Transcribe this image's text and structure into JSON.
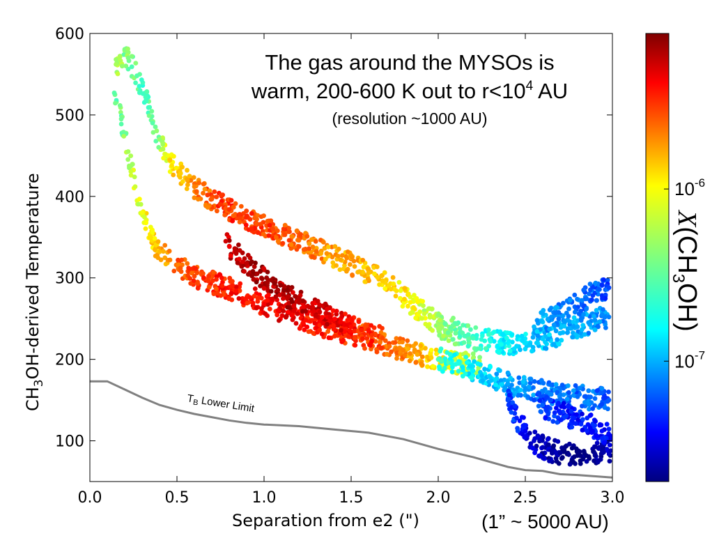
{
  "chart_data": {
    "type": "scatter",
    "title_lines": [
      "The gas around the MYSOs is",
      "warm, 200-600 K out to r<10",
      "4",
      " AU",
      "(resolution ~1000 AU)"
    ],
    "xlabel": "Separation from e2 (\")",
    "xlabel_note": "(1” ~ 5000 AU)",
    "ylabel_parts": [
      "CH",
      "3",
      "OH-derived Temperature"
    ],
    "xlim": [
      0.0,
      3.0
    ],
    "ylim": [
      50,
      600
    ],
    "x_ticks": [
      "0.0",
      "0.5",
      "1.0",
      "1.5",
      "2.0",
      "2.5",
      "3.0"
    ],
    "y_ticks": [
      "100",
      "200",
      "300",
      "400",
      "500",
      "600"
    ],
    "grid": false,
    "colorbar": {
      "label_parts": [
        "X",
        "(CH",
        "3",
        "OH)"
      ],
      "scale": "log",
      "range": [
        2e-08,
        8e-06
      ],
      "ticks": [
        {
          "base": "10",
          "exp": "-6",
          "value": 1e-06
        },
        {
          "base": "10",
          "exp": "-7",
          "value": 1e-07
        }
      ],
      "colormap": "jet"
    },
    "lower_limit_curve": {
      "label_main": "T",
      "label_sub": "B",
      "label_rest": " Lower Limit",
      "color": "#808080",
      "points": [
        [
          0.0,
          173
        ],
        [
          0.1,
          173
        ],
        [
          0.2,
          163
        ],
        [
          0.3,
          153
        ],
        [
          0.4,
          144
        ],
        [
          0.5,
          138
        ],
        [
          0.6,
          133
        ],
        [
          0.7,
          129
        ],
        [
          0.8,
          125
        ],
        [
          0.9,
          122
        ],
        [
          1.0,
          120
        ],
        [
          1.2,
          118
        ],
        [
          1.4,
          114
        ],
        [
          1.6,
          110
        ],
        [
          1.8,
          102
        ],
        [
          2.0,
          90
        ],
        [
          2.2,
          80
        ],
        [
          2.4,
          68
        ],
        [
          2.5,
          64
        ],
        [
          2.6,
          63
        ],
        [
          2.7,
          59
        ],
        [
          2.8,
          58
        ],
        [
          3.0,
          55
        ]
      ]
    },
    "series": [
      {
        "points": [
          [
            0.15,
            562
          ],
          [
            0.22,
            570
          ],
          [
            0.27,
            548
          ],
          [
            0.32,
            522
          ],
          [
            0.36,
            490
          ],
          [
            0.4,
            470
          ],
          [
            0.43,
            452
          ],
          [
            0.47,
            438
          ],
          [
            0.52,
            428
          ],
          [
            0.56,
            420
          ],
          [
            0.6,
            412
          ],
          [
            0.65,
            404
          ],
          [
            0.7,
            397
          ],
          [
            0.75,
            390
          ],
          [
            0.8,
            384
          ],
          [
            0.86,
            378
          ],
          [
            0.92,
            372
          ],
          [
            0.98,
            366
          ],
          [
            1.05,
            360
          ],
          [
            1.12,
            353
          ],
          [
            1.2,
            346
          ],
          [
            1.28,
            338
          ],
          [
            1.36,
            330
          ],
          [
            1.44,
            322
          ],
          [
            1.52,
            314
          ],
          [
            1.6,
            306
          ],
          [
            1.68,
            296
          ],
          [
            1.76,
            284
          ],
          [
            1.84,
            270
          ],
          [
            1.92,
            256
          ],
          [
            2.0,
            244
          ],
          [
            2.1,
            236
          ]
        ],
        "logX": [
          -6.3,
          -6.4,
          -6.5,
          -6.55,
          -6.5,
          -6.35,
          -6.15,
          -6.0,
          -5.95,
          -5.85,
          -5.75,
          -5.7,
          -5.65,
          -5.55,
          -5.55,
          -5.55,
          -5.55,
          -5.6,
          -5.6,
          -5.6,
          -5.7,
          -5.75,
          -5.8,
          -5.85,
          -5.85,
          -5.9,
          -5.95,
          -6.0,
          -6.05,
          -6.2,
          -6.3,
          -6.35
        ]
      },
      {
        "points": [
          [
            0.14,
            527
          ],
          [
            0.18,
            495
          ],
          [
            0.22,
            455
          ],
          [
            0.26,
            412
          ],
          [
            0.3,
            380
          ],
          [
            0.35,
            350
          ],
          [
            0.4,
            332
          ],
          [
            0.46,
            322
          ],
          [
            0.52,
            312
          ],
          [
            0.6,
            302
          ],
          [
            0.68,
            296
          ],
          [
            0.76,
            290
          ],
          [
            0.84,
            284
          ],
          [
            0.92,
            276
          ],
          [
            1.0,
            268
          ],
          [
            1.08,
            260
          ],
          [
            1.16,
            254
          ],
          [
            1.24,
            248
          ],
          [
            1.32,
            242
          ],
          [
            1.4,
            237
          ],
          [
            1.48,
            232
          ],
          [
            1.56,
            228
          ],
          [
            1.64,
            222
          ],
          [
            1.72,
            216
          ],
          [
            1.8,
            211
          ],
          [
            1.88,
            206
          ],
          [
            1.96,
            202
          ],
          [
            2.04,
            199
          ],
          [
            2.14,
            196
          ],
          [
            2.24,
            192
          ]
        ],
        "logX": [
          -6.5,
          -6.45,
          -6.3,
          -6.2,
          -6.1,
          -6.0,
          -5.9,
          -5.75,
          -5.65,
          -5.6,
          -5.55,
          -5.5,
          -5.45,
          -5.45,
          -5.4,
          -5.4,
          -5.4,
          -5.45,
          -5.5,
          -5.55,
          -5.55,
          -5.6,
          -5.65,
          -5.7,
          -5.75,
          -5.85,
          -5.95,
          -6.05,
          -6.2,
          -6.35
        ]
      },
      {
        "points": [
          [
            0.78,
            345
          ],
          [
            0.84,
            330
          ],
          [
            0.9,
            318
          ],
          [
            0.96,
            305
          ],
          [
            1.02,
            294
          ],
          [
            1.08,
            285
          ],
          [
            1.14,
            277
          ],
          [
            1.2,
            270
          ],
          [
            1.26,
            264
          ],
          [
            1.32,
            258
          ],
          [
            1.38,
            252
          ],
          [
            1.44,
            246
          ],
          [
            1.5,
            240
          ],
          [
            1.56,
            236
          ],
          [
            1.62,
            230
          ],
          [
            1.68,
            226
          ]
        ],
        "logX": [
          -5.3,
          -5.25,
          -5.25,
          -5.2,
          -5.2,
          -5.2,
          -5.25,
          -5.25,
          -5.3,
          -5.3,
          -5.35,
          -5.4,
          -5.45,
          -5.5,
          -5.55,
          -5.6
        ]
      },
      {
        "points": [
          [
            2.0,
            238
          ],
          [
            2.1,
            232
          ],
          [
            2.2,
            226
          ],
          [
            2.3,
            222
          ],
          [
            2.4,
            220
          ],
          [
            2.5,
            220
          ],
          [
            2.6,
            225
          ],
          [
            2.7,
            232
          ],
          [
            2.8,
            240
          ],
          [
            2.9,
            248
          ],
          [
            2.98,
            252
          ]
        ],
        "logX": [
          -6.3,
          -6.45,
          -6.55,
          -6.65,
          -6.75,
          -6.8,
          -6.85,
          -6.9,
          -6.95,
          -7.0,
          -7.05
        ]
      },
      {
        "points": [
          [
            2.0,
            200
          ],
          [
            2.1,
            194
          ],
          [
            2.2,
            186
          ],
          [
            2.3,
            178
          ],
          [
            2.4,
            170
          ],
          [
            2.5,
            164
          ],
          [
            2.6,
            160
          ],
          [
            2.7,
            156
          ],
          [
            2.8,
            154
          ],
          [
            2.9,
            152
          ],
          [
            2.98,
            150
          ]
        ],
        "logX": [
          -6.55,
          -6.65,
          -6.75,
          -6.85,
          -6.95,
          -7.0,
          -7.05,
          -7.05,
          -7.1,
          -7.1,
          -7.15
        ]
      },
      {
        "points": [
          [
            2.4,
            150
          ],
          [
            2.45,
            128
          ],
          [
            2.5,
            112
          ],
          [
            2.55,
            100
          ],
          [
            2.6,
            92
          ],
          [
            2.65,
            88
          ],
          [
            2.7,
            85
          ],
          [
            2.75,
            83
          ],
          [
            2.8,
            82
          ],
          [
            2.85,
            82
          ],
          [
            2.9,
            84
          ],
          [
            2.95,
            86
          ],
          [
            2.99,
            88
          ]
        ],
        "logX": [
          -7.2,
          -7.3,
          -7.4,
          -7.5,
          -7.55,
          -7.6,
          -7.65,
          -7.65,
          -7.7,
          -7.7,
          -7.65,
          -7.6,
          -7.55
        ]
      },
      {
        "points": [
          [
            2.55,
            150
          ],
          [
            2.62,
            140
          ],
          [
            2.7,
            134
          ],
          [
            2.78,
            128
          ],
          [
            2.86,
            120
          ],
          [
            2.94,
            112
          ],
          [
            2.99,
            106
          ]
        ],
        "logX": [
          -7.2,
          -7.25,
          -7.3,
          -7.3,
          -7.35,
          -7.35,
          -7.4
        ]
      },
      {
        "points": [
          [
            2.55,
            240
          ],
          [
            2.65,
            252
          ],
          [
            2.75,
            262
          ],
          [
            2.85,
            275
          ],
          [
            2.92,
            286
          ],
          [
            2.98,
            288
          ]
        ],
        "logX": [
          -6.9,
          -7.0,
          -7.05,
          -7.1,
          -7.15,
          -7.2
        ]
      }
    ]
  }
}
